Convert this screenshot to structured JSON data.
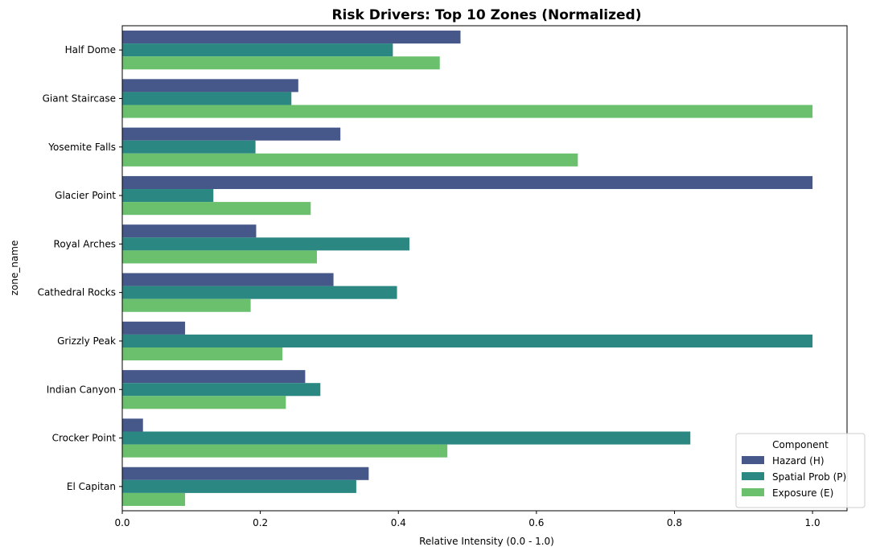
{
  "chart_data": {
    "type": "bar",
    "orientation": "horizontal",
    "title": "Risk Drivers: Top 10 Zones (Normalized)",
    "xlabel": "Relative Intensity (0.0 - 1.0)",
    "ylabel": "zone_name",
    "xlim": [
      0,
      1.05
    ],
    "xticks": [
      "0.0",
      "0.2",
      "0.4",
      "0.6",
      "0.8",
      "1.0"
    ],
    "grid": false,
    "legend_title": "Component",
    "legend_position": "bottom-right",
    "categories": [
      "Half Dome",
      "Giant Staircase",
      "Yosemite Falls",
      "Glacier Point",
      "Royal Arches",
      "Cathedral Rocks",
      "Grizzly Peak",
      "Indian Canyon",
      "Crocker Point",
      "El Capitan"
    ],
    "series": [
      {
        "name": "Hazard (H)",
        "color": "#46578a",
        "values": [
          0.49,
          0.255,
          0.316,
          1.0,
          0.194,
          0.306,
          0.091,
          0.265,
          0.03,
          0.357
        ]
      },
      {
        "name": "Spatial Prob (P)",
        "color": "#2a8782",
        "values": [
          0.392,
          0.245,
          0.193,
          0.132,
          0.416,
          0.398,
          1.0,
          0.287,
          0.823,
          0.339
        ]
      },
      {
        "name": "Exposure (E)",
        "color": "#6ac06d",
        "values": [
          0.46,
          1.0,
          0.66,
          0.273,
          0.282,
          0.186,
          0.232,
          0.237,
          0.471,
          0.091
        ]
      }
    ]
  }
}
